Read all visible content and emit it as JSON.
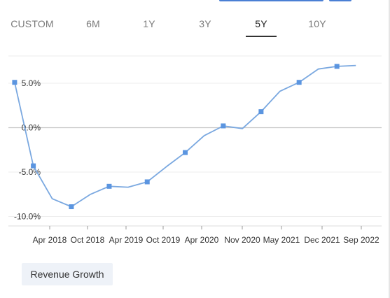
{
  "range_tabs": {
    "items": [
      "CUSTOM",
      "6M",
      "1Y",
      "3Y",
      "5Y",
      "10Y"
    ],
    "active": "5Y"
  },
  "legend": {
    "label": "Revenue Growth"
  },
  "colors": {
    "line": "#7aa8e0",
    "marker": "#5b95e0",
    "zero_line": "#c8c8c8",
    "grid": "#eeeeee",
    "axis": "#999999"
  },
  "chart_data": {
    "type": "line",
    "title": "",
    "xlabel": "",
    "ylabel": "",
    "x_tick_labels": [
      "Apr 2018",
      "Oct 2018",
      "Apr 2019",
      "Oct 2019",
      "Apr 2020",
      "Nov 2020",
      "May 2021",
      "Dec 2021",
      "Sep 2022"
    ],
    "y_tick_labels": [
      "5.0%",
      "0.0%",
      "-5.0%",
      "-10.0%"
    ],
    "y_ticks": [
      5,
      0,
      -5,
      -10
    ],
    "ylim": [
      -11,
      8
    ],
    "xlim": [
      "2017-12-01",
      "2022-11-01"
    ],
    "grid": true,
    "series": [
      {
        "name": "Revenue Growth",
        "points": [
          {
            "date": "2017-12-31",
            "value": 5.1,
            "marker": true
          },
          {
            "date": "2018-03-31",
            "value": -4.3,
            "marker": true
          },
          {
            "date": "2018-06-30",
            "value": -8.0,
            "marker": false
          },
          {
            "date": "2018-09-30",
            "value": -8.9,
            "marker": true
          },
          {
            "date": "2018-12-31",
            "value": -7.5,
            "marker": false
          },
          {
            "date": "2019-03-31",
            "value": -6.6,
            "marker": true
          },
          {
            "date": "2019-06-30",
            "value": -6.7,
            "marker": false
          },
          {
            "date": "2019-09-30",
            "value": -6.1,
            "marker": true
          },
          {
            "date": "2019-12-31",
            "value": -4.4,
            "marker": false
          },
          {
            "date": "2020-03-31",
            "value": -2.8,
            "marker": true
          },
          {
            "date": "2020-06-30",
            "value": -0.9,
            "marker": false
          },
          {
            "date": "2020-09-30",
            "value": 0.2,
            "marker": true
          },
          {
            "date": "2020-12-31",
            "value": -0.1,
            "marker": false
          },
          {
            "date": "2021-03-31",
            "value": 1.8,
            "marker": true
          },
          {
            "date": "2021-06-30",
            "value": 4.1,
            "marker": false
          },
          {
            "date": "2021-09-30",
            "value": 5.1,
            "marker": true
          },
          {
            "date": "2021-12-31",
            "value": 6.6,
            "marker": false
          },
          {
            "date": "2022-03-31",
            "value": 6.9,
            "marker": true
          },
          {
            "date": "2022-06-30",
            "value": 7.0,
            "marker": false
          }
        ]
      }
    ]
  }
}
